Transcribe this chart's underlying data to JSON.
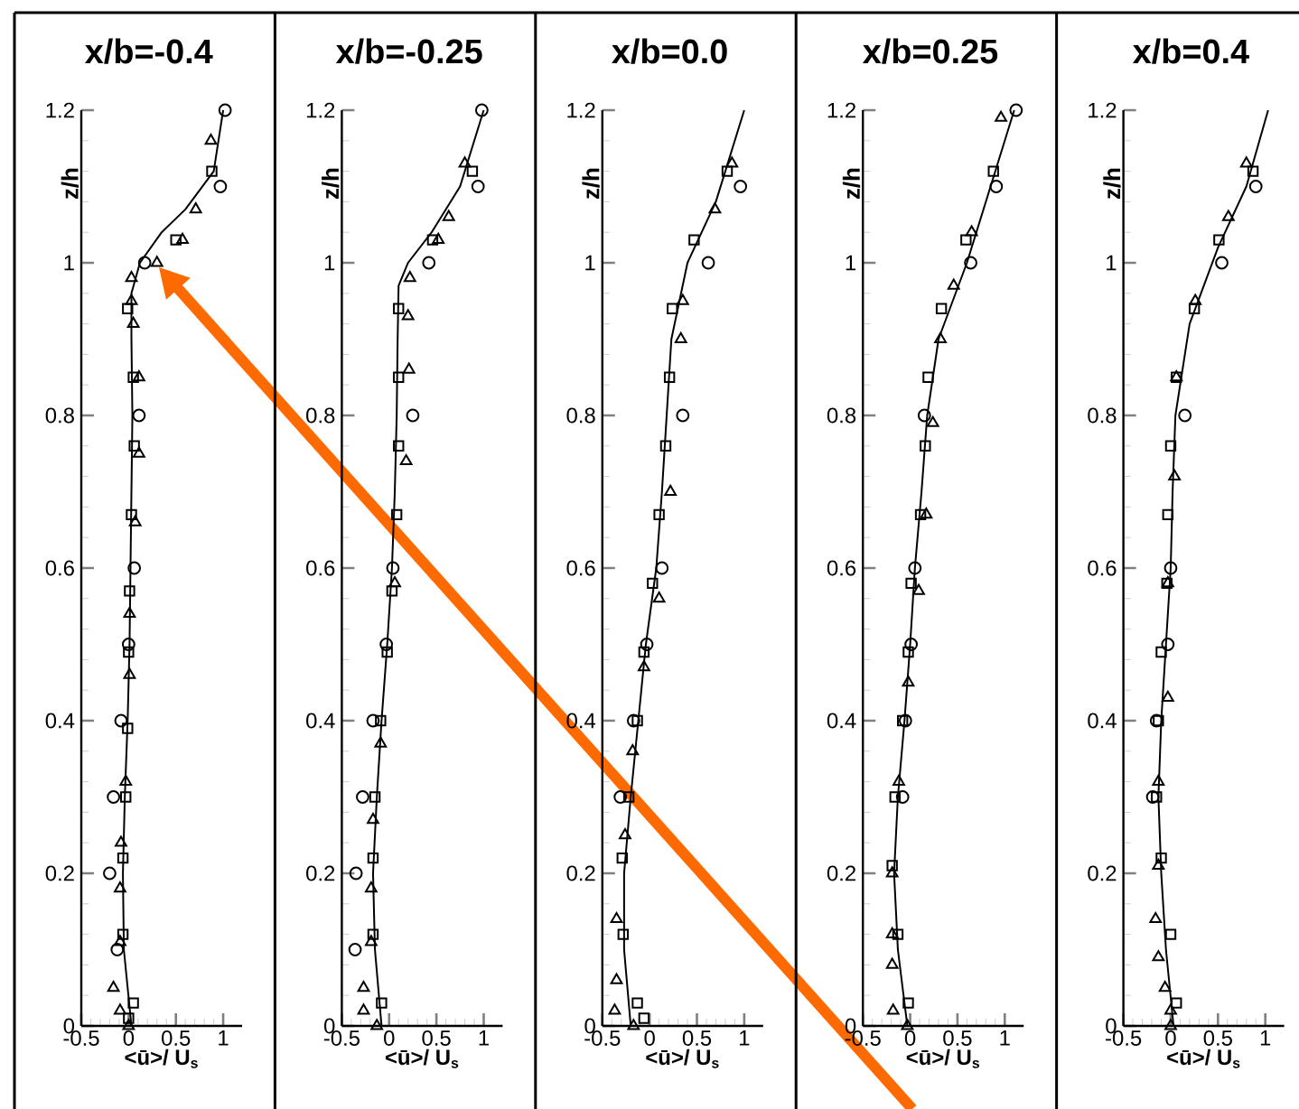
{
  "chart_data": [
    {
      "type": "scatter",
      "title": "x/b=-0.4",
      "xlabel": "<ū>/ U$_{s}$",
      "ylabel": "z/h",
      "xlim": [
        -0.5,
        1.2
      ],
      "ylim": [
        0,
        1.2
      ],
      "xticks": [
        -0.5,
        0,
        0.5,
        1
      ],
      "yticks": [
        0,
        0.2,
        0.4,
        0.6,
        0.8,
        1,
        1.2
      ],
      "series": [
        {
          "type": "line",
          "color": "#000000",
          "marker": "none",
          "x": [
            0.03,
            -0.05,
            -0.06,
            -0.04,
            -0.01,
            0.01,
            0.02,
            0.04,
            0.03,
            0.03,
            0.12,
            0.35,
            0.6,
            0.9,
            1.0
          ],
          "values": [
            0,
            0.1,
            0.2,
            0.3,
            0.4,
            0.5,
            0.6,
            0.8,
            0.9,
            0.96,
            1.0,
            1.04,
            1.07,
            1.12,
            1.2
          ]
        },
        {
          "color": "#000000",
          "marker": "circle",
          "x": [
            -0.12,
            -0.2,
            -0.16,
            -0.08,
            0.0,
            0.06,
            0.11,
            0.17,
            0.97,
            1.02
          ],
          "values": [
            0.1,
            0.2,
            0.3,
            0.4,
            0.5,
            0.6,
            0.8,
            1.0,
            1.1,
            1.2
          ]
        },
        {
          "color": "#000000",
          "marker": "triangle",
          "x": [
            0.0,
            -0.09,
            -0.16,
            -0.09,
            -0.09,
            -0.08,
            -0.03,
            0.01,
            0.01,
            0.07,
            0.11,
            0.11,
            0.05,
            0.03,
            0.03,
            0.3,
            0.57,
            0.71,
            0.87
          ],
          "values": [
            0.0,
            0.02,
            0.05,
            0.11,
            0.18,
            0.24,
            0.32,
            0.46,
            0.54,
            0.66,
            0.75,
            0.85,
            0.92,
            0.95,
            0.98,
            1.0,
            1.03,
            1.07,
            1.16
          ]
        },
        {
          "color": "#000000",
          "marker": "square",
          "x": [
            0.0,
            0.05,
            -0.06,
            -0.06,
            -0.03,
            -0.01,
            0.0,
            0.01,
            0.03,
            0.06,
            0.05,
            -0.01,
            0.5,
            0.88
          ],
          "values": [
            0.01,
            0.03,
            0.12,
            0.22,
            0.3,
            0.39,
            0.49,
            0.57,
            0.67,
            0.76,
            0.85,
            0.94,
            1.03,
            1.12
          ]
        }
      ]
    },
    {
      "type": "scatter",
      "title": "x/b=-0.25",
      "xlabel": "<ū>/ U$_{s}$",
      "ylabel": "z/h",
      "xlim": [
        -0.5,
        1.2
      ],
      "ylim": [
        0,
        1.2
      ],
      "xticks": [
        -0.5,
        0,
        0.5,
        1
      ],
      "yticks": [
        0,
        0.2,
        0.4,
        0.6,
        0.8,
        1,
        1.2
      ],
      "series": [
        {
          "type": "line",
          "color": "#000000",
          "marker": "none",
          "x": [
            -0.08,
            -0.15,
            -0.17,
            -0.13,
            -0.08,
            -0.02,
            0.03,
            0.06,
            0.08,
            0.09,
            0.1,
            0.2,
            0.45,
            0.75,
            1.0
          ],
          "values": [
            0,
            0.1,
            0.2,
            0.3,
            0.4,
            0.5,
            0.6,
            0.7,
            0.8,
            0.9,
            0.97,
            1.0,
            1.04,
            1.1,
            1.2
          ]
        },
        {
          "color": "#000000",
          "marker": "circle",
          "x": [
            -0.36,
            -0.35,
            -0.28,
            -0.17,
            -0.03,
            0.04,
            0.25,
            0.42,
            0.94,
            0.98
          ],
          "values": [
            0.1,
            0.2,
            0.3,
            0.4,
            0.5,
            0.6,
            0.8,
            1.0,
            1.1,
            1.2
          ]
        },
        {
          "color": "#000000",
          "marker": "triangle",
          "x": [
            -0.13,
            -0.27,
            -0.27,
            -0.19,
            -0.19,
            -0.17,
            -0.09,
            0.06,
            0.18,
            0.21,
            0.2,
            0.22,
            0.52,
            0.63,
            0.8
          ],
          "values": [
            0.0,
            0.02,
            0.05,
            0.11,
            0.18,
            0.27,
            0.37,
            0.58,
            0.74,
            0.86,
            0.93,
            0.98,
            1.03,
            1.06,
            1.13
          ]
        },
        {
          "color": "#000000",
          "marker": "square",
          "x": [
            -0.08,
            -0.17,
            -0.17,
            -0.15,
            -0.09,
            -0.02,
            0.03,
            0.08,
            0.1,
            0.1,
            0.1,
            0.46,
            0.88
          ],
          "values": [
            0.03,
            0.12,
            0.22,
            0.3,
            0.4,
            0.49,
            0.57,
            0.67,
            0.76,
            0.85,
            0.94,
            1.03,
            1.12
          ]
        }
      ]
    },
    {
      "type": "scatter",
      "title": "x/b=0.0",
      "xlabel": "<ū>/ U$_{s}$",
      "ylabel": "z/h",
      "xlim": [
        -0.5,
        1.2
      ],
      "ylim": [
        0,
        1.2
      ],
      "xticks": [
        -0.5,
        0,
        0.5,
        1
      ],
      "yticks": [
        0,
        0.2,
        0.4,
        0.6,
        0.8,
        1,
        1.2
      ],
      "series": [
        {
          "type": "line",
          "color": "#000000",
          "marker": "none",
          "x": [
            -0.2,
            -0.27,
            -0.27,
            -0.2,
            -0.12,
            -0.04,
            0.07,
            0.13,
            0.18,
            0.23,
            0.4,
            0.7,
            1.0
          ],
          "values": [
            0,
            0.1,
            0.2,
            0.3,
            0.4,
            0.5,
            0.6,
            0.7,
            0.8,
            0.9,
            1.0,
            1.08,
            1.2
          ]
        },
        {
          "color": "#000000",
          "marker": "circle",
          "x": [
            -0.31,
            -0.17,
            -0.03,
            0.13,
            0.35,
            0.62,
            0.96
          ],
          "values": [
            0.3,
            0.4,
            0.5,
            0.6,
            0.8,
            1.0,
            1.1
          ]
        },
        {
          "color": "#000000",
          "marker": "triangle",
          "x": [
            -0.17,
            -0.37,
            -0.35,
            -0.35,
            -0.26,
            -0.18,
            -0.06,
            0.1,
            0.22,
            0.33,
            0.35,
            0.69,
            0.87
          ],
          "values": [
            0.0,
            0.02,
            0.06,
            0.14,
            0.25,
            0.36,
            0.47,
            0.56,
            0.7,
            0.9,
            0.95,
            1.07,
            1.13
          ]
        },
        {
          "color": "#000000",
          "marker": "square",
          "x": [
            -0.06,
            -0.13,
            -0.28,
            -0.29,
            -0.22,
            -0.13,
            -0.06,
            0.03,
            0.1,
            0.17,
            0.21,
            0.24,
            0.47,
            0.82
          ],
          "values": [
            0.01,
            0.03,
            0.12,
            0.22,
            0.3,
            0.4,
            0.49,
            0.58,
            0.67,
            0.76,
            0.85,
            0.94,
            1.03,
            1.12
          ]
        }
      ]
    },
    {
      "type": "scatter",
      "title": "x/b=0.25",
      "xlabel": "<ū>/ U$_{s}$",
      "ylabel": "z/h",
      "xlim": [
        -0.5,
        1.2
      ],
      "ylim": [
        0,
        1.2
      ],
      "xticks": [
        -0.5,
        0,
        0.5,
        1
      ],
      "yticks": [
        0,
        0.2,
        0.4,
        0.6,
        0.8,
        1,
        1.2
      ],
      "series": [
        {
          "type": "line",
          "color": "#000000",
          "marker": "none",
          "x": [
            -0.03,
            -0.13,
            -0.17,
            -0.13,
            -0.06,
            0.0,
            0.05,
            0.12,
            0.18,
            0.3,
            0.6,
            0.85,
            1.1
          ],
          "values": [
            0,
            0.1,
            0.2,
            0.3,
            0.4,
            0.5,
            0.6,
            0.7,
            0.8,
            0.9,
            1.0,
            1.1,
            1.2
          ]
        },
        {
          "color": "#000000",
          "marker": "circle",
          "x": [
            -0.08,
            -0.05,
            0.01,
            0.05,
            0.15,
            0.64,
            0.91,
            1.12
          ],
          "values": [
            0.3,
            0.4,
            0.5,
            0.6,
            0.8,
            1.0,
            1.1,
            1.2
          ]
        },
        {
          "color": "#000000",
          "marker": "triangle",
          "x": [
            -0.03,
            -0.18,
            -0.19,
            -0.19,
            -0.19,
            -0.12,
            -0.02,
            0.09,
            0.17,
            0.24,
            0.32,
            0.46,
            0.65,
            0.96
          ],
          "values": [
            0.0,
            0.02,
            0.08,
            0.12,
            0.2,
            0.32,
            0.45,
            0.57,
            0.67,
            0.79,
            0.9,
            0.97,
            1.04,
            1.19
          ]
        },
        {
          "color": "#000000",
          "marker": "square",
          "x": [
            -0.02,
            -0.13,
            -0.19,
            -0.16,
            -0.08,
            -0.02,
            0.01,
            0.11,
            0.16,
            0.19,
            0.33,
            0.59,
            0.88
          ],
          "values": [
            0.03,
            0.12,
            0.21,
            0.3,
            0.4,
            0.49,
            0.58,
            0.67,
            0.76,
            0.85,
            0.94,
            1.03,
            1.12
          ]
        }
      ]
    },
    {
      "type": "scatter",
      "title": "x/b=0.4",
      "xlabel": "<ū>/ U$_{s}$",
      "ylabel": "z/h",
      "xlim": [
        -0.5,
        1.2
      ],
      "ylim": [
        0,
        1.2
      ],
      "xticks": [
        -0.5,
        0,
        0.5,
        1
      ],
      "yticks": [
        0,
        0.2,
        0.4,
        0.6,
        0.8,
        1,
        1.2
      ],
      "series": [
        {
          "type": "line",
          "color": "#000000",
          "marker": "none",
          "x": [
            0.03,
            -0.05,
            -0.1,
            -0.13,
            -0.1,
            -0.05,
            0.0,
            0.02,
            0.05,
            0.2,
            0.5,
            0.8,
            1.03
          ],
          "values": [
            0,
            0.1,
            0.2,
            0.3,
            0.4,
            0.5,
            0.6,
            0.7,
            0.8,
            0.92,
            1.02,
            1.1,
            1.2
          ]
        },
        {
          "color": "#000000",
          "marker": "circle",
          "x": [
            -0.19,
            -0.15,
            -0.03,
            0.0,
            0.15,
            0.54,
            0.9
          ],
          "values": [
            0.3,
            0.4,
            0.5,
            0.6,
            0.8,
            1.0,
            1.1
          ]
        },
        {
          "color": "#000000",
          "marker": "triangle",
          "x": [
            0.0,
            0.0,
            -0.06,
            -0.13,
            -0.16,
            -0.13,
            -0.13,
            -0.03,
            -0.03,
            0.04,
            0.06,
            0.26,
            0.61,
            0.8
          ],
          "values": [
            0.0,
            0.02,
            0.05,
            0.09,
            0.14,
            0.21,
            0.32,
            0.43,
            0.58,
            0.72,
            0.85,
            0.95,
            1.06,
            1.13
          ]
        },
        {
          "color": "#000000",
          "marker": "square",
          "x": [
            0.06,
            0.0,
            -0.1,
            -0.15,
            -0.13,
            -0.1,
            -0.04,
            -0.03,
            0.0,
            0.06,
            0.25,
            0.51,
            0.87
          ],
          "values": [
            0.03,
            0.12,
            0.22,
            0.3,
            0.4,
            0.49,
            0.58,
            0.67,
            0.76,
            0.85,
            0.94,
            1.03,
            1.12
          ]
        }
      ]
    }
  ]
}
